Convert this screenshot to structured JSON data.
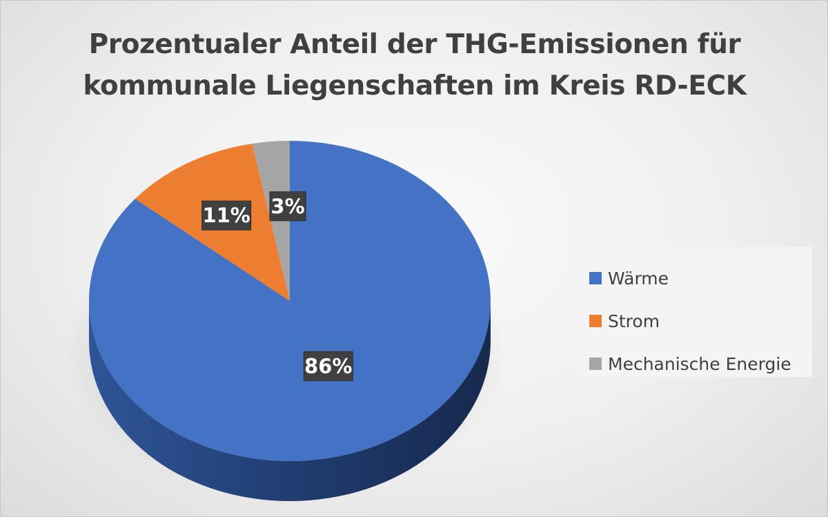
{
  "chart_data": {
    "type": "pie",
    "title": "Prozentualer Anteil der THG-Emissionen für kommunale Liegenschaften im Kreis RD-ECK",
    "title_lines": [
      "Prozentualer Anteil der THG-Emissionen für",
      "kommunale Liegenschaften im Kreis RD-ECK"
    ],
    "categories": [
      "Wärme",
      "Strom",
      "Mechanische Energie"
    ],
    "values": [
      86,
      11,
      3
    ],
    "data_labels": [
      "86%",
      "11%",
      "3%"
    ],
    "colors": [
      "#4472C4",
      "#ED7D31",
      "#A5A5A5"
    ],
    "legend": {
      "position": "right",
      "entries": [
        "Wärme",
        "Strom",
        "Mechanische Energie"
      ]
    },
    "style": "3d"
  }
}
